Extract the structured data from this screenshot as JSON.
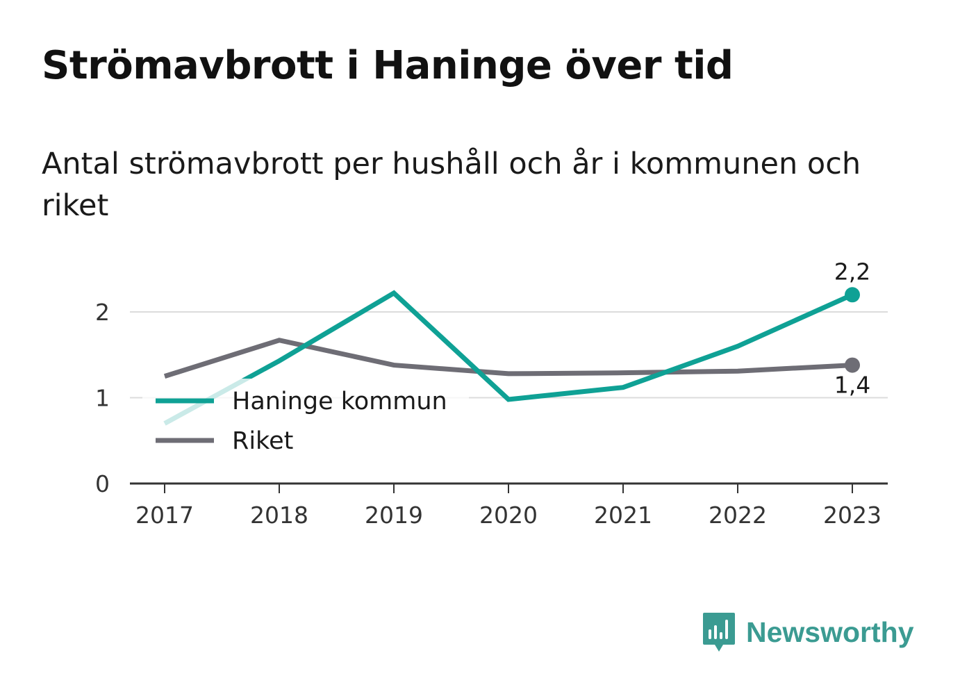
{
  "header": {
    "title": "Strömavbrott i Haninge över tid",
    "subtitle": "Antal strömavbrott per hushåll och år i kommunen och riket"
  },
  "brand": {
    "name": "Newsworthy",
    "color": "#3b9b92",
    "icon": "bar-chart-speech-bubble-icon"
  },
  "chart_data": {
    "type": "line",
    "x": [
      "2017",
      "2018",
      "2019",
      "2020",
      "2021",
      "2022",
      "2023"
    ],
    "ylim": [
      0,
      2.5
    ],
    "yticks": [
      0,
      1,
      2
    ],
    "ytick_labels": [
      "0",
      "1",
      "2"
    ],
    "grid": true,
    "legend_position": "bottom-left",
    "series": [
      {
        "name": "Haninge kommun",
        "color": "#0fa195",
        "values": [
          0.7,
          1.43,
          2.22,
          0.98,
          1.12,
          1.6,
          2.2
        ],
        "end_label": "2,2"
      },
      {
        "name": "Riket",
        "color": "#6e6d75",
        "values": [
          1.25,
          1.67,
          1.38,
          1.28,
          1.29,
          1.31,
          1.38
        ],
        "end_label": "1,4"
      }
    ]
  }
}
